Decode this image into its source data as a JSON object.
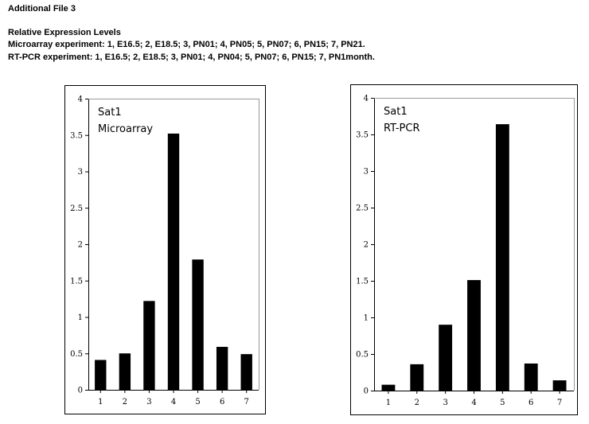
{
  "header": {
    "title": "Additional File 3",
    "subtitle": "Relative Expression Levels",
    "microarray_key": "Microarray experiment: 1, E16.5; 2, E18.5; 3, PN01; 4, PN05; 5, PN07; 6, PN15; 7, PN21.",
    "rtpcr_key": "RT-PCR experiment: 1, E16.5; 2, E18.5; 3, PN01; 4, PN04; 5, PN07; 6, PN15; 7, PN1month."
  },
  "chart_data": [
    {
      "type": "bar",
      "categories": [
        "1",
        "2",
        "3",
        "4",
        "5",
        "6",
        "7"
      ],
      "values": [
        0.41,
        0.5,
        1.22,
        3.52,
        1.79,
        0.59,
        0.49
      ],
      "annotations": [
        "Sat1",
        "Microarray"
      ],
      "ylim": [
        0,
        4
      ],
      "yticks": [
        "0",
        "0.5",
        "1",
        "1.5",
        "2",
        "2.5",
        "3",
        "3.5",
        "4"
      ],
      "grid": false,
      "bar_color": "#000000"
    },
    {
      "type": "bar",
      "categories": [
        "1",
        "2",
        "3",
        "4",
        "5",
        "6",
        "7"
      ],
      "values": [
        0.08,
        0.36,
        0.9,
        1.51,
        3.64,
        0.37,
        0.14
      ],
      "annotations": [
        "Sat1",
        "RT-PCR"
      ],
      "ylim": [
        0,
        4
      ],
      "yticks": [
        "0",
        "0.5",
        "1",
        "1.5",
        "2",
        "2.5",
        "3",
        "3.5",
        "4"
      ],
      "grid": false,
      "bar_color": "#000000"
    }
  ]
}
